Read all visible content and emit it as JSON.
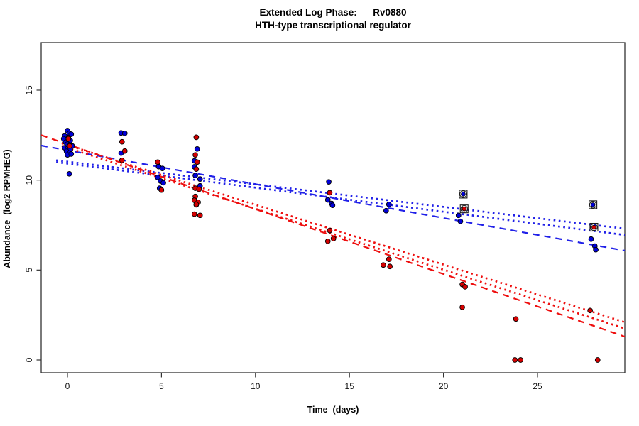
{
  "title": {
    "line1": "Extended Log Phase:      Rv0880",
    "line2": "HTH-type transcriptional regulator"
  },
  "axes": {
    "xlabel": "Time  (days)",
    "ylabel": "Abundance  (log2 RPMHEG)",
    "x_ticks": [
      0,
      5,
      10,
      15,
      20,
      25
    ],
    "y_ticks": [
      0,
      5,
      10,
      15
    ],
    "xlim": [
      -1.4,
      29.64
    ],
    "ylim": [
      -0.71,
      17.64
    ],
    "grid": "off"
  },
  "colors": {
    "blue_point": "#0000D8",
    "red_point": "#D40000",
    "blue_line": "#2020E8",
    "red_line": "#EE0E0E",
    "marker_outline": "#1a1a1a",
    "axis": "#333333"
  },
  "chart_data": {
    "type": "scatter",
    "title": "Extended Log Phase: Rv0880 — HTH-type transcriptional regulator",
    "xlabel": "Time (days)",
    "ylabel": "Abundance (log2 RPMHEG)",
    "legend_position": "none",
    "series": [
      {
        "name": "blue-points",
        "color": "#0000D8",
        "points": [
          [
            -0.15,
            12.45
          ],
          [
            0.0,
            12.75
          ],
          [
            0.1,
            12.6
          ],
          [
            0.2,
            12.55
          ],
          [
            -0.2,
            12.3
          ],
          [
            0.05,
            12.35
          ],
          [
            0.15,
            12.2
          ],
          [
            -0.1,
            12.1
          ],
          [
            0.0,
            12.0
          ],
          [
            0.1,
            11.95
          ],
          [
            0.25,
            11.9
          ],
          [
            -0.15,
            11.8
          ],
          [
            0.0,
            11.75
          ],
          [
            0.15,
            11.7
          ],
          [
            -0.05,
            11.6
          ],
          [
            0.1,
            11.5
          ],
          [
            0.0,
            11.4
          ],
          [
            0.2,
            11.45
          ],
          [
            0.1,
            10.35
          ],
          [
            2.85,
            12.62
          ],
          [
            3.05,
            12.6
          ],
          [
            2.85,
            11.5
          ],
          [
            4.85,
            10.75
          ],
          [
            5.05,
            10.65
          ],
          [
            4.8,
            10.15
          ],
          [
            4.95,
            9.95
          ],
          [
            5.1,
            9.85
          ],
          [
            4.9,
            9.55
          ],
          [
            6.9,
            11.73
          ],
          [
            6.75,
            11.07
          ],
          [
            6.75,
            10.74
          ],
          [
            6.8,
            10.26
          ],
          [
            7.05,
            10.06
          ],
          [
            7.05,
            9.68
          ],
          [
            6.85,
            8.63
          ],
          [
            13.9,
            9.9
          ],
          [
            13.85,
            8.9
          ],
          [
            14.05,
            8.7
          ],
          [
            14.1,
            8.6
          ],
          [
            17.1,
            8.65
          ],
          [
            16.95,
            8.3
          ],
          [
            20.8,
            8.04
          ],
          [
            20.9,
            7.71
          ],
          [
            27.85,
            6.72
          ],
          [
            28.05,
            6.33
          ],
          [
            28.1,
            6.13
          ]
        ]
      },
      {
        "name": "red-points",
        "color": "#D40000",
        "points": [
          [
            0.05,
            12.3
          ],
          [
            0.12,
            11.9
          ],
          [
            2.9,
            12.13
          ],
          [
            3.05,
            11.62
          ],
          [
            2.9,
            11.1
          ],
          [
            4.8,
            11.0
          ],
          [
            5.0,
            9.45
          ],
          [
            6.85,
            12.38
          ],
          [
            6.8,
            11.4
          ],
          [
            6.9,
            11.0
          ],
          [
            6.85,
            10.61
          ],
          [
            6.8,
            9.55
          ],
          [
            7.0,
            9.49
          ],
          [
            6.8,
            9.09
          ],
          [
            6.75,
            8.88
          ],
          [
            6.95,
            8.77
          ],
          [
            6.85,
            8.65
          ],
          [
            6.75,
            8.11
          ],
          [
            7.05,
            8.04
          ],
          [
            13.95,
            9.3
          ],
          [
            13.95,
            7.2
          ],
          [
            14.15,
            6.75
          ],
          [
            13.85,
            6.6
          ],
          [
            17.1,
            5.6
          ],
          [
            16.8,
            5.28
          ],
          [
            17.15,
            5.2
          ],
          [
            21.0,
            4.2
          ],
          [
            21.15,
            4.07
          ],
          [
            21.0,
            2.93
          ],
          [
            23.85,
            2.28
          ],
          [
            23.8,
            0.0
          ],
          [
            24.1,
            0.0
          ],
          [
            27.8,
            2.75
          ],
          [
            28.2,
            0.0
          ]
        ]
      }
    ],
    "flagged_points": [
      {
        "x": 21.05,
        "y": 9.22,
        "series": "blue",
        "marker": "circle-square-flag"
      },
      {
        "x": 21.1,
        "y": 8.4,
        "series": "red",
        "marker": "circle-square-flag"
      },
      {
        "x": 27.95,
        "y": 8.63,
        "series": "blue",
        "marker": "circle-square-flag"
      },
      {
        "x": 28.0,
        "y": 7.38,
        "series": "red",
        "marker": "circle-square-flag"
      }
    ],
    "fit_lines": [
      {
        "name": "blue-dashed-fit",
        "color": "#2020E8",
        "style": "dashed",
        "x1": -1.4,
        "y1": 11.92,
        "x2": 29.64,
        "y2": 6.08
      },
      {
        "name": "blue-dotted-fit-1",
        "color": "#2020E8",
        "style": "dotted",
        "x1": -0.6,
        "y1": 11.1,
        "x2": 29.64,
        "y2": 7.3
      },
      {
        "name": "blue-dotted-fit-2",
        "color": "#2020E8",
        "style": "dotted",
        "x1": -0.6,
        "y1": 11.0,
        "x2": 29.64,
        "y2": 6.95
      },
      {
        "name": "red-dashed-fit",
        "color": "#EE0E0E",
        "style": "dashed",
        "x1": -1.4,
        "y1": 12.5,
        "x2": 29.64,
        "y2": 1.3
      },
      {
        "name": "red-dotted-fit-1",
        "color": "#EE0E0E",
        "style": "dotted",
        "x1": -0.3,
        "y1": 12.05,
        "x2": 29.64,
        "y2": 2.1
      },
      {
        "name": "red-dotted-fit-2",
        "color": "#EE0E0E",
        "style": "dotted",
        "x1": -0.3,
        "y1": 11.9,
        "x2": 29.64,
        "y2": 1.75
      }
    ]
  }
}
